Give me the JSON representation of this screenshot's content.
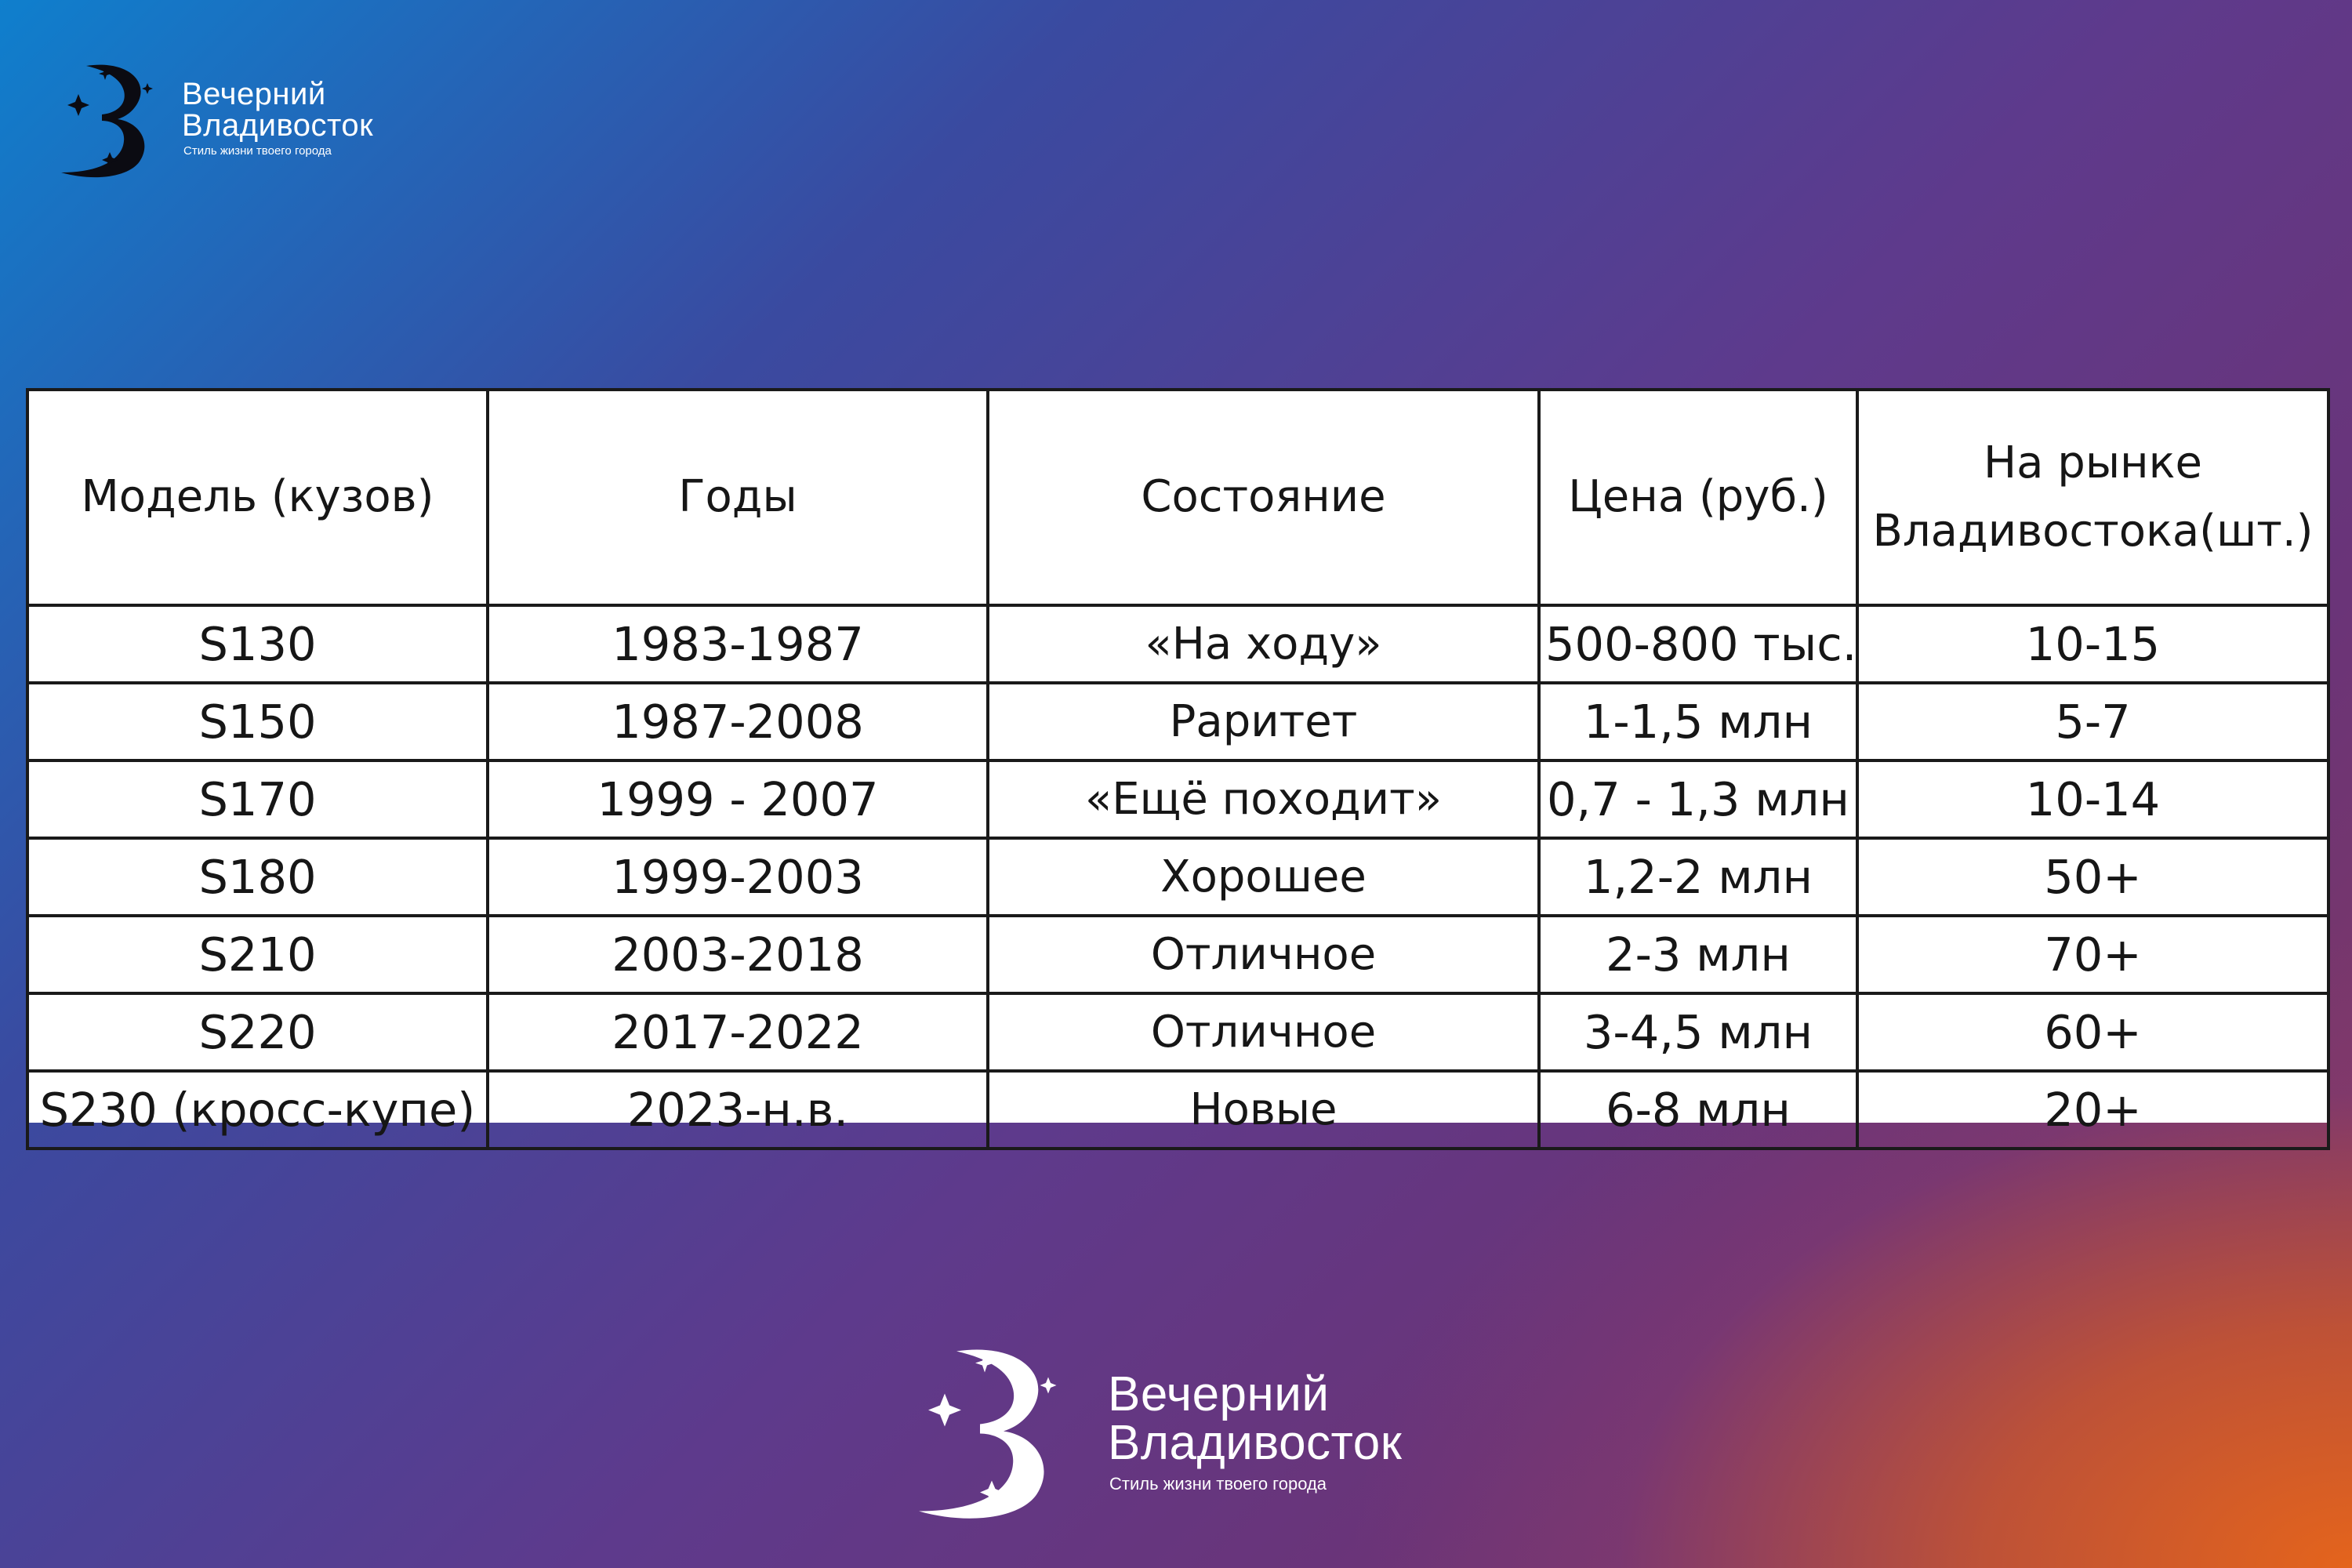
{
  "brand": {
    "name_line1": "Вечерний",
    "name_line2": "Владивосток",
    "tagline": "Стиль жизни твоего города",
    "logo_icon": "crescent-moon-stars-icon"
  },
  "table": {
    "headers": [
      "Модель (кузов)",
      "Годы",
      "Состояние",
      "Цена (руб.)",
      "На рынке Владивостока(шт.)"
    ],
    "rows": [
      [
        "S130",
        "1983-1987",
        "«На ходу»",
        "500-800 тыс.",
        "10-15"
      ],
      [
        "S150",
        "1987-2008",
        "Раритет",
        "1-1,5 млн",
        "5-7"
      ],
      [
        "S170",
        "1999 - 2007",
        "«Ещё походит»",
        "0,7 - 1,3 млн",
        "10-14"
      ],
      [
        "S180",
        "1999-2003",
        "Хорошее",
        "1,2-2 млн",
        "50+"
      ],
      [
        "S210",
        "2003-2018",
        "Отличное",
        "2-3 млн",
        "70+"
      ],
      [
        "S220",
        "2017-2022",
        "Отличное",
        "3-4,5 млн",
        "60+"
      ],
      [
        "S230 (кросс-купе)",
        "2023-н.в.",
        "Новые",
        "6-8 млн",
        "20+"
      ]
    ]
  }
}
